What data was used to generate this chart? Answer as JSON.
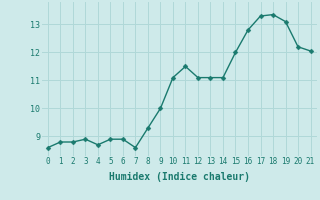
{
  "x": [
    0,
    1,
    2,
    3,
    4,
    5,
    6,
    7,
    8,
    9,
    10,
    11,
    12,
    13,
    14,
    15,
    16,
    17,
    18,
    19,
    20,
    21
  ],
  "y": [
    8.6,
    8.8,
    8.8,
    8.9,
    8.7,
    8.9,
    8.9,
    8.6,
    9.3,
    10.0,
    11.1,
    11.5,
    11.1,
    11.1,
    11.1,
    12.0,
    12.8,
    13.3,
    13.35,
    13.1,
    12.2,
    12.05
  ],
  "line_color": "#1a7a6e",
  "marker_color": "#1a7a6e",
  "bg_color": "#ceeaea",
  "grid_color": "#b0d8d8",
  "xlabel": "Humidex (Indice chaleur)",
  "xlabel_fontsize": 7,
  "ytick_labels": [
    "9",
    "10",
    "11",
    "12",
    "13"
  ],
  "ytick_values": [
    9,
    10,
    11,
    12,
    13
  ],
  "ylim": [
    8.3,
    13.8
  ],
  "xlim": [
    -0.5,
    21.5
  ],
  "xtick_values": [
    0,
    1,
    2,
    3,
    4,
    5,
    6,
    7,
    8,
    9,
    10,
    11,
    12,
    13,
    14,
    15,
    16,
    17,
    18,
    19,
    20,
    21
  ],
  "marker_size": 2.5,
  "line_width": 1.0
}
